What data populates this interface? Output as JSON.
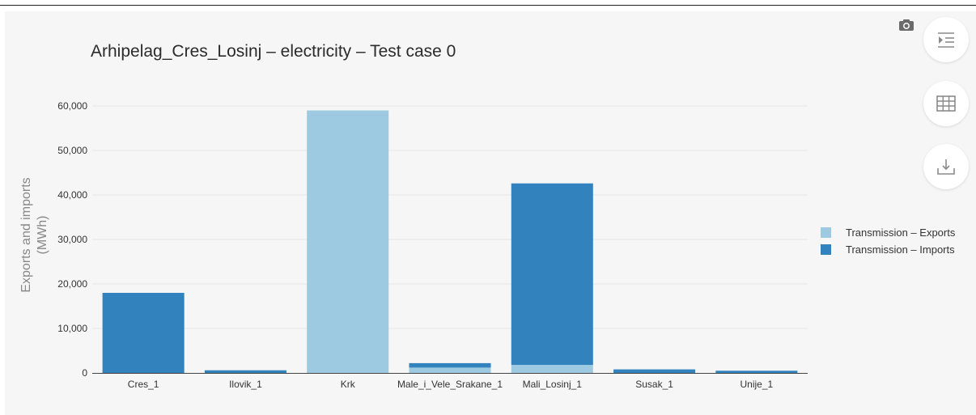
{
  "title": "Arhipelag_Cres_Losinj – electricity – Test case 0",
  "toolbar": {
    "camera_icon": "camera-icon",
    "menu_icon": "indent-list-icon",
    "table_icon": "table-grid-icon",
    "download_icon": "download-icon"
  },
  "colors": {
    "exports": "#9ecae1",
    "imports": "#3182bd",
    "panel": "#f6f6f6"
  },
  "chart_data": {
    "type": "bar",
    "stacked": true,
    "title": "Arhipelag_Cres_Losinj – electricity – Test case 0",
    "xlabel": "",
    "ylabel": "Exports and imports (MWh)",
    "ylabel_lines": [
      "Exports and imports",
      "(MWh)"
    ],
    "ylim": [
      0,
      62000
    ],
    "yticks": [
      0,
      10000,
      20000,
      30000,
      40000,
      50000,
      60000
    ],
    "ytick_labels": [
      "0",
      "10,000",
      "20,000",
      "30,000",
      "40,000",
      "50,000",
      "60,000"
    ],
    "grid": true,
    "legend_position": "right",
    "categories": [
      "Cres_1",
      "Ilovik_1",
      "Krk",
      "Male_i_Vele_Srakane_1",
      "Mali_Losinj_1",
      "Susak_1",
      "Unije_1"
    ],
    "series": [
      {
        "name": "Transmission – Exports",
        "color": "#9ecae1",
        "values": [
          0,
          0,
          59000,
          1200,
          1800,
          0,
          0
        ]
      },
      {
        "name": "Transmission – Imports",
        "color": "#3182bd",
        "values": [
          18000,
          600,
          0,
          1000,
          40800,
          800,
          500
        ]
      }
    ]
  }
}
